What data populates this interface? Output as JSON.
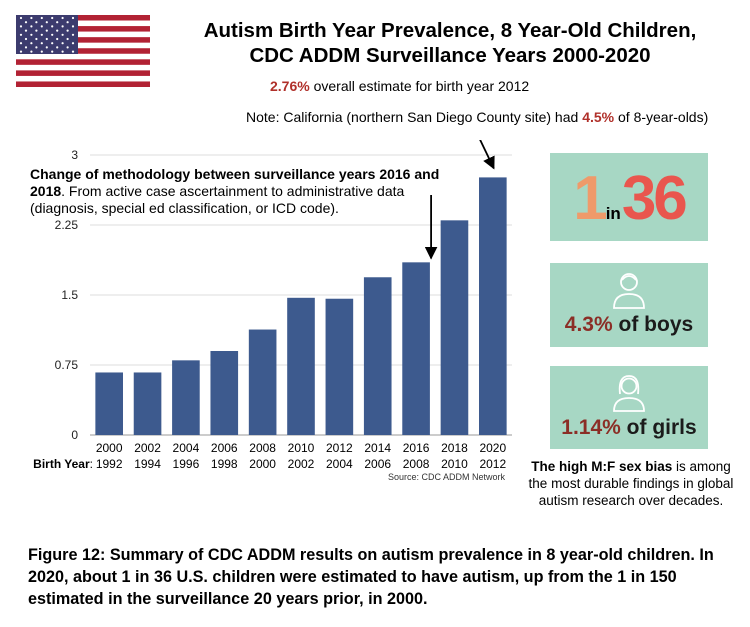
{
  "title_line1": "Autism Birth Year Prevalence, 8 Year-Old Children,",
  "title_line2": "CDC ADDM Surveillance Years 2000-2020",
  "estimate_value": "2.76%",
  "estimate_text": " overall estimate for birth year 2012",
  "note_prefix": "Note: California (northern San Diego County site) had ",
  "note_value": "4.5%",
  "note_suffix": " of 8-year-olds)",
  "method_bold": "Change of methodology between surveillance years 2016 and 2018",
  "method_text": ". From active case ascertainment to administrative data (diagnosis, special ed classification, or ICD code).",
  "source": "Source: CDC ADDM Network",
  "birth_year_label": "Birth Year",
  "one_in_a": "1",
  "one_in_b": "in",
  "one_in_c": "36",
  "boys_pct": "4.3%",
  "boys_text": " of boys",
  "girls_pct": "1.14%",
  "girls_text": " of girls",
  "mf_bold": "The high M:F sex bias",
  "mf_text": " is among the most durable findings in global autism research over decades.",
  "caption": "Figure 12: Summary of CDC ADDM results on autism prevalence in 8 year-old children. In 2020, about 1 in 36 U.S. children were estimated to have autism, up from the 1 in 150 estimated in the surveillance 20 years prior, in 2000.",
  "colors": {
    "bar": "#3d5a8e",
    "accent_red": "#b0302a",
    "card": "#a7d7c4",
    "grid": "#dddddd"
  },
  "chart_data": {
    "type": "bar",
    "categories": [
      "2000",
      "2002",
      "2004",
      "2006",
      "2008",
      "2010",
      "2012",
      "2014",
      "2016",
      "2018",
      "2020"
    ],
    "birth_years": [
      "1992",
      "1994",
      "1996",
      "1998",
      "2000",
      "2002",
      "2004",
      "2006",
      "2008",
      "2010",
      "2012"
    ],
    "values": [
      0.67,
      0.67,
      0.8,
      0.9,
      1.13,
      1.47,
      1.46,
      1.69,
      1.85,
      2.3,
      2.76
    ],
    "ylim": [
      0,
      3
    ],
    "yticks": [
      0,
      0.75,
      1.5,
      2.25,
      3
    ],
    "ytick_labels": [
      "0",
      "0.75",
      "1.5",
      "2.25",
      "3"
    ],
    "grid": true
  }
}
